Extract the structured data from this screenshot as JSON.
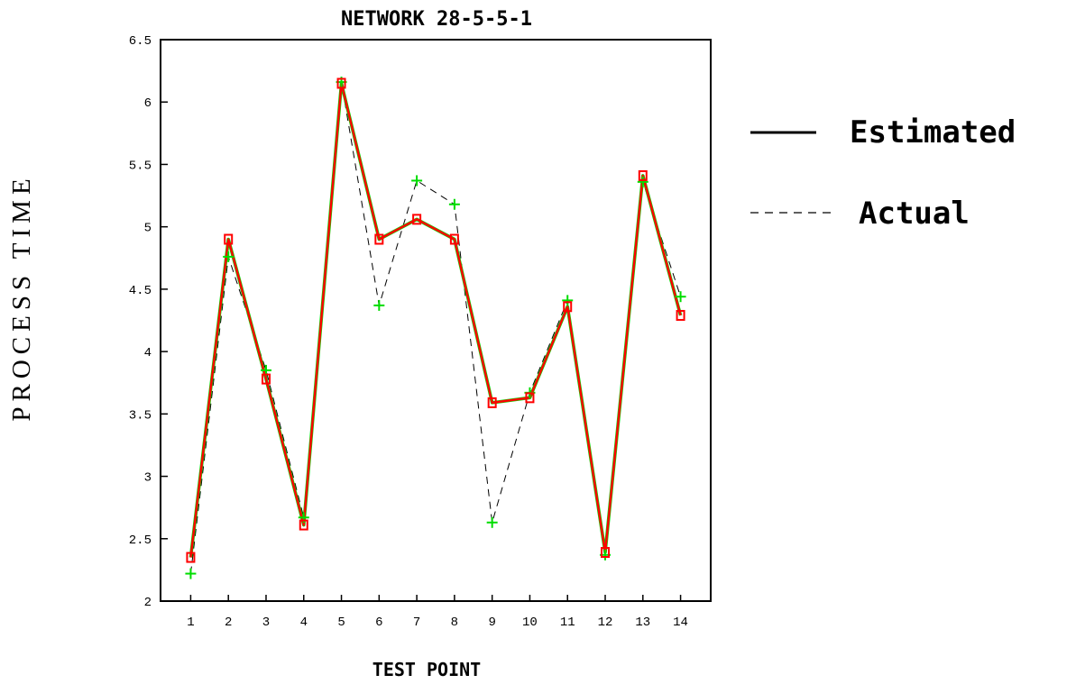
{
  "chart_data": {
    "type": "line",
    "title": "NETWORK 28-5-5-1",
    "xlabel": "TEST POINT",
    "ylabel": "PROCESS TIME",
    "xlim": [
      0.2,
      14.8
    ],
    "ylim": [
      2,
      6.5
    ],
    "x": [
      1,
      2,
      3,
      4,
      5,
      6,
      7,
      8,
      9,
      10,
      11,
      12,
      13,
      14
    ],
    "x_tick_labels": [
      "1",
      "2",
      "3",
      "4",
      "5",
      "6",
      "7",
      "8",
      "9",
      "10",
      "11",
      "12",
      "13",
      "14"
    ],
    "y_ticks": [
      2,
      2.5,
      3,
      3.5,
      4,
      4.5,
      5,
      5.5,
      6,
      6.5
    ],
    "y_tick_labels": [
      "2",
      "2.5",
      "3",
      "3.5",
      "4",
      "4.5",
      "5",
      "5.5",
      "6",
      "6.5"
    ],
    "legend_position": "right",
    "grid": false,
    "series": [
      {
        "name": "Estimated",
        "style": "solid",
        "marker": "square",
        "color": "#ff0000",
        "values": [
          2.35,
          4.9,
          3.78,
          2.61,
          6.15,
          4.9,
          5.06,
          4.9,
          3.59,
          3.63,
          4.36,
          2.39,
          5.41,
          4.29
        ]
      },
      {
        "name": "Actual",
        "style": "dashed",
        "marker": "plus",
        "color": "#00dd00",
        "values": [
          2.22,
          4.76,
          3.85,
          2.67,
          6.16,
          4.37,
          5.37,
          5.18,
          2.63,
          3.67,
          4.41,
          2.37,
          5.36,
          4.44
        ]
      }
    ]
  },
  "legend": {
    "estimated_label": "Estimated",
    "actual_label": "Actual"
  },
  "colors": {
    "estimated": "#ff0000",
    "actual": "#00dd00",
    "axis": "#000000"
  }
}
